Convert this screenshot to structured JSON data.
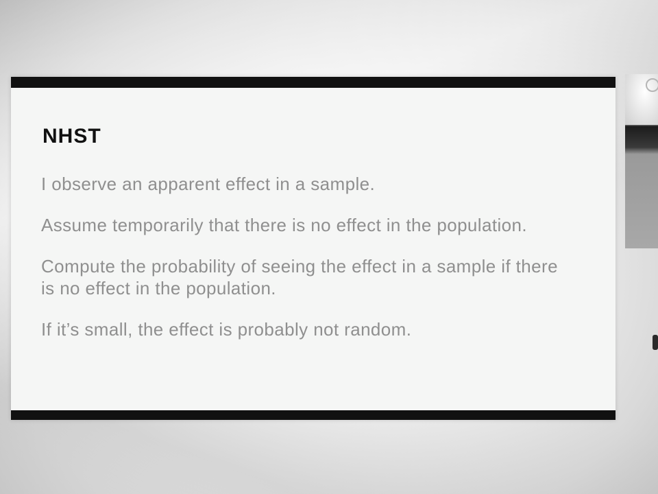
{
  "slide": {
    "title": "NHST",
    "points": [
      "I observe an apparent effect in a sample.",
      "Assume temporarily that there is no effect in the population.",
      "Compute the probability of seeing the effect in a sample if there is no effect in the population.",
      "If it’s small, the effect is probably not random."
    ]
  },
  "colors": {
    "title": "#111111",
    "body_text": "#8f8f8f",
    "slide_background": "#f5f6f5",
    "slide_bars": "#111111"
  }
}
